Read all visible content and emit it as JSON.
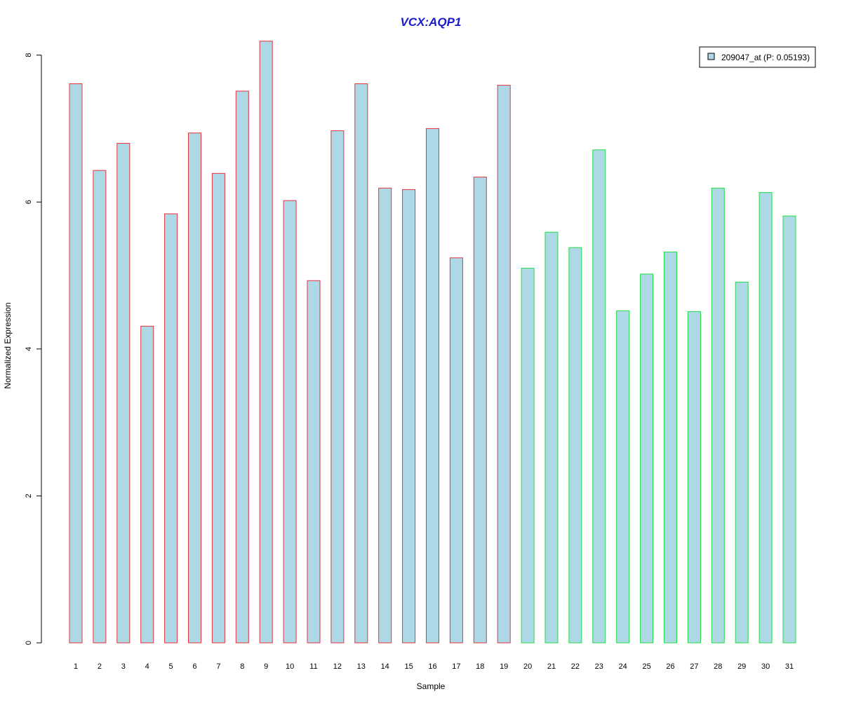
{
  "chart_data": {
    "type": "bar",
    "title": "VCX:AQP1",
    "xlabel": "Sample",
    "ylabel": "Normalized Expression",
    "ylim": [
      0,
      8.3
    ],
    "yticks": [
      0,
      2,
      4,
      6,
      8
    ],
    "grid": false,
    "legend": {
      "placement": "top-right",
      "label": "209047_at (P: 0.05193)"
    },
    "categories": [
      "1",
      "2",
      "3",
      "4",
      "5",
      "6",
      "7",
      "8",
      "9",
      "10",
      "11",
      "12",
      "13",
      "14",
      "15",
      "16",
      "17",
      "18",
      "19",
      "20",
      "21",
      "22",
      "23",
      "24",
      "25",
      "26",
      "27",
      "28",
      "29",
      "30",
      "31"
    ],
    "values": [
      7.61,
      6.43,
      6.8,
      4.31,
      5.84,
      6.94,
      6.39,
      7.51,
      8.19,
      6.02,
      4.93,
      6.97,
      7.61,
      6.19,
      6.17,
      7.0,
      5.24,
      6.34,
      7.59,
      5.1,
      5.59,
      5.38,
      6.71,
      4.52,
      5.02,
      5.32,
      4.51,
      6.19,
      4.91,
      6.13,
      5.81
    ],
    "groups": [
      {
        "samples": "1-19",
        "border_color": "#e8323c"
      },
      {
        "samples": "20-31",
        "border_color": "#22dd44"
      }
    ],
    "bar_fill": "#add8e6",
    "title_color": "#1a1acc"
  }
}
